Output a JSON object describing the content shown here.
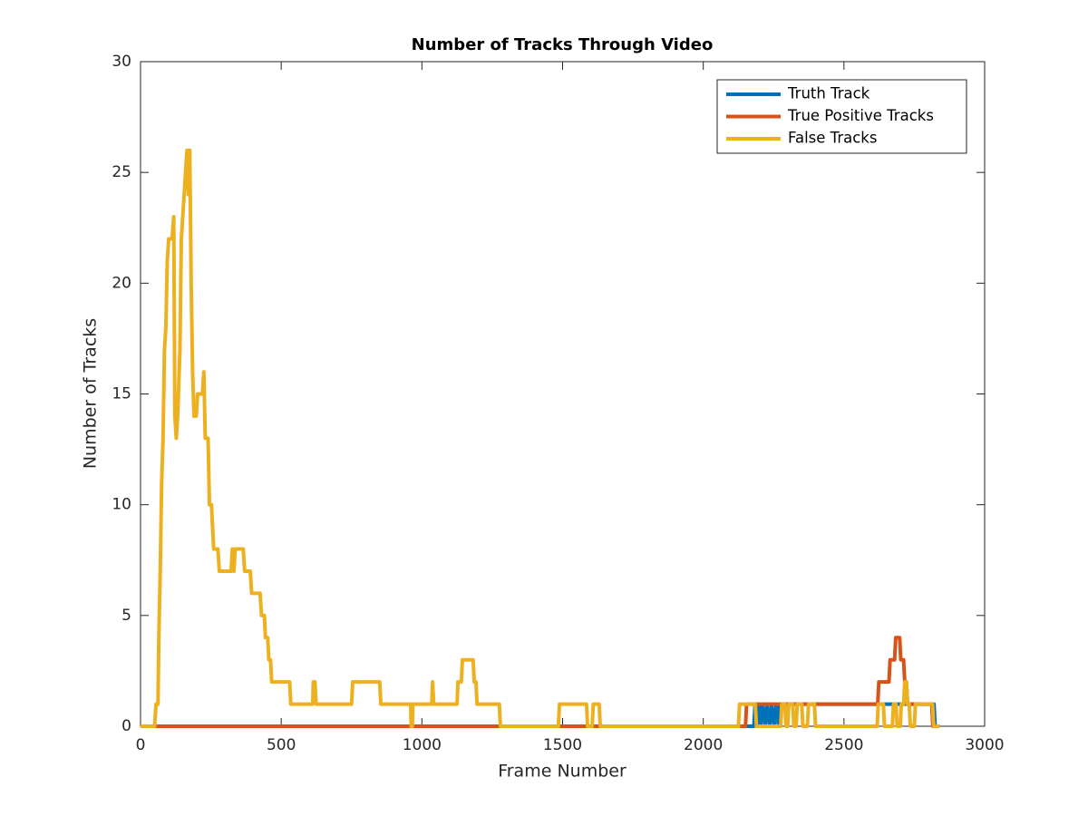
{
  "chart_data": {
    "type": "line",
    "title": "Number of Tracks Through Video",
    "x_label": "Frame Number",
    "y_label": "Number of Tracks",
    "xlim": [
      0,
      3000
    ],
    "ylim": [
      0,
      30
    ],
    "xticks": [
      0,
      500,
      1000,
      1500,
      2000,
      2500,
      3000
    ],
    "yticks": [
      0,
      5,
      10,
      15,
      20,
      25,
      30
    ],
    "grid": false,
    "legend": "upper right",
    "series": [
      {
        "name": "Truth Track",
        "color": "#0072bd",
        "x": [
          0,
          2180,
          2184,
          2190,
          2196,
          2204,
          2210,
          2220,
          2226,
          2236,
          2242,
          2252,
          2258,
          2268,
          2272,
          2820,
          2824,
          2840
        ],
        "values": [
          0,
          0,
          1,
          0,
          1,
          0,
          1,
          0,
          1,
          0,
          1,
          0,
          1,
          0,
          1,
          1,
          0,
          0
        ]
      },
      {
        "name": "True Positive Tracks",
        "color": "#d95319",
        "x": [
          0,
          2150,
          2154,
          2620,
          2624,
          2660,
          2664,
          2680,
          2684,
          2698,
          2702,
          2712,
          2716,
          2722,
          2726,
          2812,
          2816,
          2840
        ],
        "values": [
          0,
          0,
          1,
          1,
          2,
          2,
          3,
          3,
          4,
          4,
          3,
          3,
          2,
          2,
          1,
          1,
          0,
          0
        ]
      },
      {
        "name": "False Tracks",
        "color": "#edb120",
        "x": [
          0,
          50,
          55,
          62,
          65,
          70,
          75,
          80,
          85,
          90,
          95,
          100,
          112,
          118,
          122,
          127,
          132,
          140,
          145,
          155,
          165,
          170,
          175,
          180,
          185,
          190,
          198,
          203,
          220,
          225,
          230,
          240,
          245,
          252,
          256,
          260,
          275,
          280,
          322,
          326,
          332,
          336,
          365,
          370,
          390,
          395,
          425,
          430,
          440,
          444,
          452,
          456,
          462,
          466,
          530,
          534,
          612,
          614,
          620,
          624,
          750,
          754,
          850,
          854,
          960,
          962,
          966,
          968,
          1035,
          1038,
          1042,
          1125,
          1128,
          1140,
          1144,
          1182,
          1186,
          1192,
          1196,
          1275,
          1279,
          1485,
          1489,
          1585,
          1589,
          1605,
          1609,
          1630,
          1634,
          2125,
          2129,
          2185,
          2189,
          2275,
          2279,
          2290,
          2294,
          2300,
          2304,
          2318,
          2322,
          2330,
          2334,
          2350,
          2354,
          2370,
          2374,
          2395,
          2399,
          2618,
          2622,
          2640,
          2644,
          2672,
          2676,
          2685,
          2689,
          2700,
          2704,
          2712,
          2716,
          2722,
          2726,
          2732,
          2736,
          2750,
          2754,
          2815,
          2819,
          2840
        ],
        "values": [
          0,
          0,
          1,
          1,
          4,
          7,
          11,
          13,
          17,
          18,
          21,
          22,
          22,
          23,
          14,
          13,
          14,
          17,
          22,
          24,
          26,
          24,
          26,
          20,
          16,
          14,
          14,
          15,
          15,
          16,
          13,
          13,
          10,
          10,
          9,
          8,
          8,
          7,
          7,
          8,
          7,
          8,
          8,
          7,
          7,
          6,
          6,
          5,
          5,
          4,
          4,
          3,
          3,
          2,
          2,
          1,
          1,
          2,
          2,
          1,
          1,
          2,
          2,
          1,
          1,
          0,
          0,
          1,
          1,
          2,
          1,
          1,
          2,
          2,
          3,
          3,
          2,
          2,
          1,
          1,
          0,
          0,
          1,
          1,
          0,
          0,
          1,
          1,
          0,
          0,
          1,
          1,
          0,
          0,
          1,
          1,
          0,
          0,
          1,
          1,
          0,
          0,
          1,
          1,
          0,
          0,
          1,
          1,
          0,
          0,
          1,
          1,
          0,
          0,
          1,
          1,
          0,
          0,
          1,
          1,
          2,
          2,
          1,
          1,
          0,
          0,
          1,
          1,
          0,
          0
        ]
      }
    ]
  }
}
